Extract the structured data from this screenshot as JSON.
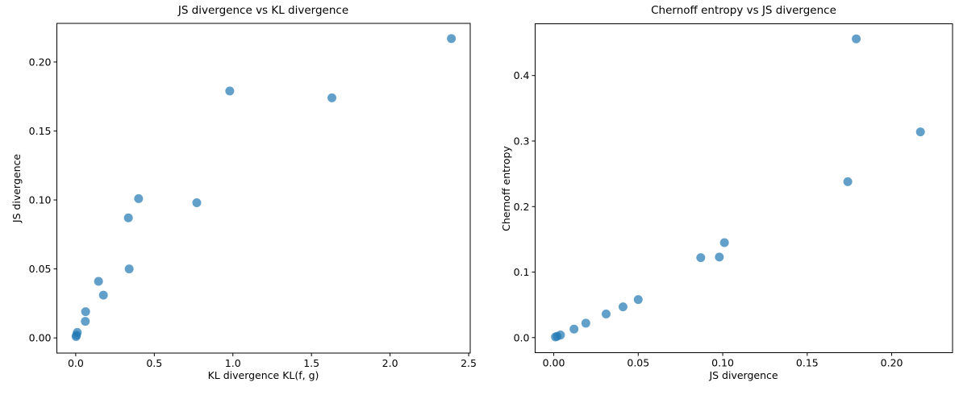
{
  "style": {
    "background": "#ffffff",
    "marker_color": "#1f77b4",
    "marker_opacity": 0.7,
    "marker_radius": 5.5,
    "spine_color": "#000000",
    "tick_color": "#000000",
    "text_color": "#000000"
  },
  "chart_data": [
    {
      "type": "scatter",
      "title": "JS divergence vs KL divergence",
      "xlabel": "KL divergence KL(f, g)",
      "ylabel": "JS divergence",
      "grid": false,
      "legend": "none",
      "xlim": [
        -0.12,
        2.51
      ],
      "ylim": [
        -0.011,
        0.228
      ],
      "xticks": [
        0,
        0.5,
        1,
        1.5,
        2,
        2.5
      ],
      "xtick_labels": [
        "0.0",
        "0.5",
        "1.0",
        "1.5",
        "2.0",
        "2.5"
      ],
      "yticks": [
        0,
        0.05,
        0.1,
        0.15,
        0.2
      ],
      "ytick_labels": [
        "0.00",
        "0.05",
        "0.10",
        "0.15",
        "0.20"
      ],
      "x": [
        0.002,
        0.005,
        0.01,
        0.061,
        0.063,
        0.176,
        0.145,
        0.34,
        0.335,
        0.77,
        0.4,
        1.63,
        0.98,
        2.39
      ],
      "y": [
        0.001,
        0.002,
        0.004,
        0.012,
        0.019,
        0.031,
        0.041,
        0.05,
        0.087,
        0.098,
        0.101,
        0.174,
        0.179,
        0.217
      ]
    },
    {
      "type": "scatter",
      "title": "Chernoff entropy vs JS divergence",
      "xlabel": "JS divergence",
      "ylabel": "Chernoff entropy",
      "grid": false,
      "legend": "none",
      "xlim": [
        -0.011,
        0.236
      ],
      "ylim": [
        -0.023,
        0.479
      ],
      "xticks": [
        0,
        0.05,
        0.1,
        0.15,
        0.2
      ],
      "xtick_labels": [
        "0.00",
        "0.05",
        "0.10",
        "0.15",
        "0.20"
      ],
      "yticks": [
        0,
        0.1,
        0.2,
        0.3,
        0.4
      ],
      "ytick_labels": [
        "0.0",
        "0.1",
        "0.2",
        "0.3",
        "0.4"
      ],
      "x": [
        0.001,
        0.002,
        0.004,
        0.012,
        0.019,
        0.031,
        0.041,
        0.05,
        0.087,
        0.098,
        0.101,
        0.174,
        0.179,
        0.217
      ],
      "y": [
        0.001,
        0.002,
        0.004,
        0.013,
        0.022,
        0.036,
        0.047,
        0.058,
        0.122,
        0.123,
        0.145,
        0.238,
        0.456,
        0.314
      ]
    }
  ]
}
